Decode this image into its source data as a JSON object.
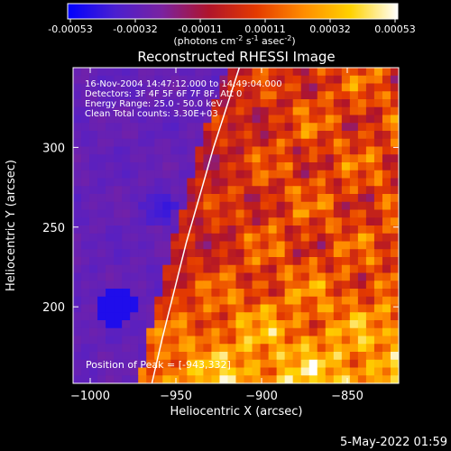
{
  "colorbar": {
    "ticks": [
      "-0.00053",
      "-0.00032",
      "-0.00011",
      "0.00011",
      "0.00032",
      "0.00053"
    ],
    "units_main": "(photons cm",
    "units_sup1": "-2",
    "units_mid": " s",
    "units_sup2": "-1",
    "units_end": " asec",
    "units_sup3": "-2",
    "units_close": ")",
    "stops": [
      "#0000ff",
      "#4a1fd0",
      "#7a22a0",
      "#b0142a",
      "#e43a00",
      "#ff8c00",
      "#ffd200",
      "#ffffff"
    ]
  },
  "chart_data": {
    "type": "heatmap",
    "title": "Reconstructed RHESSI Image",
    "xlabel": "Heliocentric X (arcsec)",
    "ylabel": "Heliocentric Y (arcsec)",
    "xlim": [
      -1010,
      -820
    ],
    "ylim": [
      152,
      350
    ],
    "xticks": [
      -1000,
      -950,
      -900,
      -850
    ],
    "xtick_labels": [
      "−1000",
      "−950",
      "−900",
      "−850"
    ],
    "yticks": [
      200,
      250,
      300
    ],
    "ytick_labels": [
      "200",
      "250",
      "300"
    ],
    "value_range": [
      -0.00053,
      0.00053
    ],
    "peak": [
      -943,
      332
    ],
    "limb_curve": [
      [
        -964,
        152
      ],
      [
        -958,
        180
      ],
      [
        -951,
        210
      ],
      [
        -944,
        240
      ],
      [
        -936,
        270
      ],
      [
        -928,
        300
      ],
      [
        -919,
        330
      ],
      [
        -913,
        350
      ]
    ],
    "annotations": [
      "16-Nov-2004 14:47:12.000 to 14:49:04.000",
      "Detectors: 3F 4F 5F 6F 7F 8F, Att 0",
      "Energy Range: 25.0 - 50.0 keV",
      "Clean    Total counts: 3.30E+03"
    ],
    "peak_label": "Position of Peak = [-943,332]"
  },
  "footer": {
    "timestamp": "5-May-2022 01:59"
  }
}
